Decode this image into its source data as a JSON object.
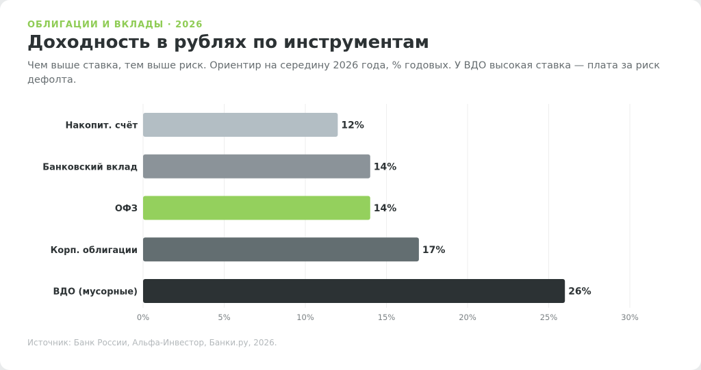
{
  "header": {
    "kicker": "ОБЛИГАЦИИ И ВКЛАДЫ · 2026",
    "title": "Доходность в рублях по инструментам",
    "subtitle": "Чем выше ставка, тем выше риск. Ориентир на середину 2026 года, % годовых. У ВДО высокая ставка — плата за риск дефолта."
  },
  "footer": {
    "source": "Источник: Банк России, Альфа-Инвестор, Банки.ру, 2026."
  },
  "colors": {
    "accent": "#8fcc55",
    "grid": "#eeeeee",
    "label": "#2c3234",
    "tick": "#7b8184"
  },
  "chart_data": {
    "type": "bar",
    "orientation": "horizontal",
    "categories": [
      "Накопит. счёт",
      "Банковский вклад",
      "ОФЗ",
      "Корп. облигации",
      "ВДО (мусорные)"
    ],
    "values": [
      12,
      14,
      14,
      17,
      26
    ],
    "value_labels": [
      "12%",
      "14%",
      "14%",
      "17%",
      "26%"
    ],
    "bar_colors": [
      "#b3bec4",
      "#8b9399",
      "#94d05d",
      "#636e71",
      "#2c3234"
    ],
    "xlim": [
      0,
      30
    ],
    "xticks": [
      0,
      5,
      10,
      15,
      20,
      25,
      30
    ],
    "xtick_labels": [
      "0%",
      "5%",
      "10%",
      "15%",
      "20%",
      "25%",
      "30%"
    ],
    "grid": true,
    "legend": false
  }
}
